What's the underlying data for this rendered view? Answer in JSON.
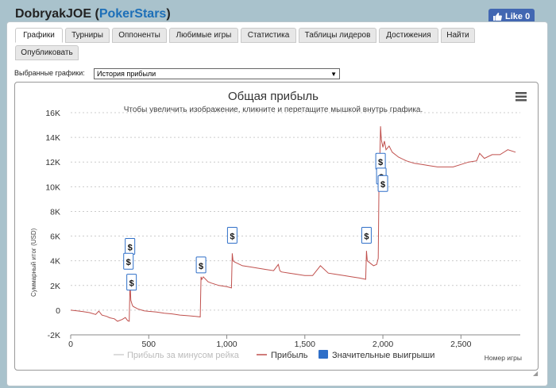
{
  "header": {
    "player": "DobryakJOE",
    "site": "PokerStars",
    "like_label": "Like 0"
  },
  "tabs": [
    {
      "label": "Графики",
      "active": true
    },
    {
      "label": "Турниры"
    },
    {
      "label": "Оппоненты"
    },
    {
      "label": "Любимые игры"
    },
    {
      "label": "Статистика"
    },
    {
      "label": "Таблицы лидеров"
    },
    {
      "label": "Достижения"
    },
    {
      "label": "Найти"
    },
    {
      "label": "Опубликовать"
    }
  ],
  "selector": {
    "label": "Выбранные графики:",
    "value": "История прибыли"
  },
  "chart_data": {
    "type": "line",
    "title": "Общая прибыль",
    "subtitle": "Чтобы увеличить изображение, кликните и перетащите мышкой внутрь графика.",
    "xlabel": "Номер игры",
    "ylabel": "Суммарный итог (USD)",
    "xlim": [
      0,
      2880
    ],
    "ylim": [
      -2000,
      16000
    ],
    "x_ticks": [
      "0",
      "500",
      "1,000",
      "1,500",
      "2,000",
      "2,500"
    ],
    "y_ticks": [
      "-2K",
      "0",
      "2K",
      "4K",
      "6K",
      "8K",
      "10K",
      "12K",
      "14K",
      "16K"
    ],
    "grid": true,
    "legend_position": "bottom",
    "legend": [
      "Прибыль за минусом рейка",
      "Прибыль",
      "Значительные выигрыши"
    ],
    "colors": {
      "profit": "#c0504d",
      "rake": "#d0d0d0",
      "wins": "#2f6fc8"
    },
    "series": [
      {
        "name": "Прибыль",
        "x": [
          0,
          40,
          80,
          120,
          160,
          180,
          200,
          230,
          250,
          280,
          300,
          330,
          350,
          365,
          375,
          380,
          385,
          395,
          400,
          430,
          470,
          500,
          550,
          600,
          650,
          700,
          750,
          800,
          830,
          835,
          840,
          850,
          880,
          900,
          950,
          1000,
          1030,
          1035,
          1040,
          1050,
          1100,
          1150,
          1200,
          1250,
          1300,
          1330,
          1340,
          1350,
          1400,
          1450,
          1500,
          1550,
          1600,
          1650,
          1700,
          1750,
          1800,
          1850,
          1890,
          1895,
          1900,
          1920,
          1940,
          1960,
          1970,
          1975,
          1980,
          1985,
          1990,
          1995,
          2000,
          2010,
          2020,
          2040,
          2060,
          2100,
          2150,
          2200,
          2250,
          2300,
          2350,
          2400,
          2450,
          2500,
          2550,
          2600,
          2620,
          2650,
          2700,
          2750,
          2800,
          2850
        ],
        "y": [
          0,
          -50,
          -120,
          -200,
          -350,
          -80,
          -400,
          -500,
          -620,
          -700,
          -900,
          -750,
          -600,
          -850,
          -900,
          2300,
          800,
          400,
          300,
          100,
          -50,
          -100,
          -150,
          -250,
          -300,
          -400,
          -450,
          -500,
          -550,
          2700,
          2500,
          2700,
          2300,
          2200,
          2000,
          1900,
          1800,
          4600,
          4000,
          3900,
          3600,
          3500,
          3400,
          3300,
          3200,
          3700,
          3200,
          3100,
          3000,
          2900,
          2800,
          2800,
          3600,
          3000,
          2900,
          2800,
          2700,
          2600,
          2500,
          4800,
          4000,
          3800,
          3600,
          3700,
          4200,
          10000,
          12000,
          14900,
          13800,
          13500,
          13200,
          13700,
          13000,
          13300,
          12800,
          12400,
          12100,
          11900,
          11800,
          11700,
          11600,
          11600,
          11600,
          11800,
          12000,
          12100,
          12700,
          12300,
          12600,
          12600,
          13000,
          12800
        ]
      }
    ],
    "significant_wins": [
      {
        "x": 380,
        "y": 5100
      },
      {
        "x": 370,
        "y": 3900
      },
      {
        "x": 390,
        "y": 2200
      },
      {
        "x": 835,
        "y": 3600
      },
      {
        "x": 1035,
        "y": 6000
      },
      {
        "x": 1895,
        "y": 6000
      },
      {
        "x": 1985,
        "y": 12000
      },
      {
        "x": 1990,
        "y": 10800
      },
      {
        "x": 2000,
        "y": 10200
      }
    ],
    "win_marker_label": "$"
  }
}
